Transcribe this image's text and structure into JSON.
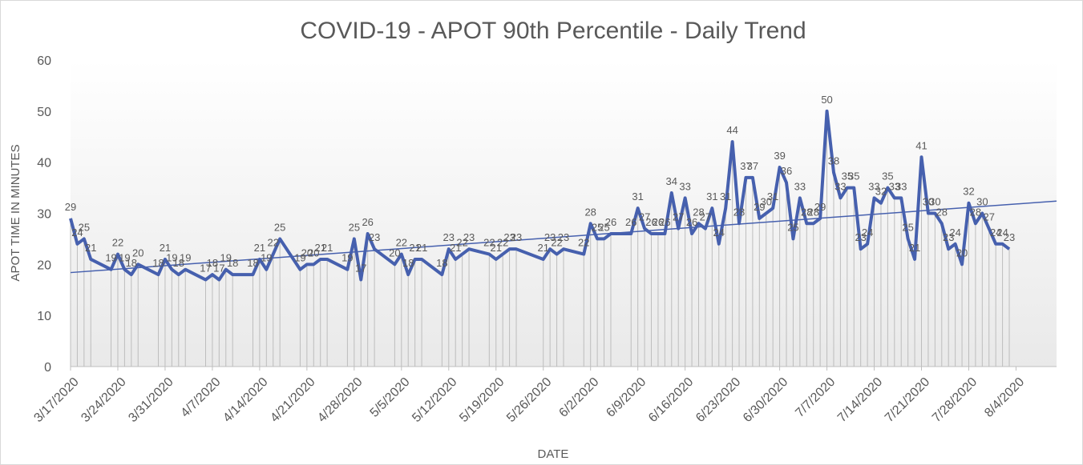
{
  "chart_data": {
    "type": "line",
    "title": "COVID-19 - APOT 90th Percentile - Daily Trend",
    "x_label": "DATE",
    "y_label": "APOT TIME IN MINUTES",
    "color": "#4660ae",
    "trendline": true,
    "drop_lines": true,
    "grid": false,
    "x": [
      "3/17/2020",
      "3/18/2020",
      "3/19/2020",
      "3/20/2020",
      "3/23/2020",
      "3/24/2020",
      "3/25/2020",
      "3/26/2020",
      "3/27/2020",
      "3/30/2020",
      "3/31/2020",
      "4/1/2020",
      "4/2/2020",
      "4/3/2020",
      "4/6/2020",
      "4/7/2020",
      "4/8/2020",
      "4/9/2020",
      "4/10/2020",
      "4/13/2020",
      "4/14/2020",
      "4/15/2020",
      "4/16/2020",
      "4/17/2020",
      "4/20/2020",
      "4/21/2020",
      "4/22/2020",
      "4/23/2020",
      "4/24/2020",
      "4/27/2020",
      "4/28/2020",
      "4/29/2020",
      "4/30/2020",
      "5/1/2020",
      "5/4/2020",
      "5/5/2020",
      "5/6/2020",
      "5/7/2020",
      "5/8/2020",
      "5/11/2020",
      "5/12/2020",
      "5/13/2020",
      "5/14/2020",
      "5/15/2020",
      "5/18/2020",
      "5/19/2020",
      "5/20/2020",
      "5/21/2020",
      "5/22/2020",
      "5/26/2020",
      "5/27/2020",
      "5/28/2020",
      "5/29/2020",
      "6/1/2020",
      "6/2/2020",
      "6/3/2020",
      "6/4/2020",
      "6/5/2020",
      "6/8/2020",
      "6/9/2020",
      "6/10/2020",
      "6/11/2020",
      "6/12/2020",
      "6/13/2020",
      "6/14/2020",
      "6/15/2020",
      "6/16/2020",
      "6/17/2020",
      "6/18/2020",
      "6/19/2020",
      "6/20/2020",
      "6/21/2020",
      "6/22/2020",
      "6/23/2020",
      "6/24/2020",
      "6/25/2020",
      "6/26/2020",
      "6/27/2020",
      "6/28/2020",
      "6/29/2020",
      "6/30/2020",
      "7/1/2020",
      "7/2/2020",
      "7/3/2020",
      "7/4/2020",
      "7/5/2020",
      "7/6/2020",
      "7/7/2020",
      "7/8/2020",
      "7/9/2020",
      "7/10/2020",
      "7/11/2020",
      "7/12/2020",
      "7/13/2020",
      "7/14/2020",
      "7/15/2020",
      "7/16/2020",
      "7/17/2020",
      "7/18/2020",
      "7/19/2020",
      "7/20/2020",
      "7/21/2020",
      "7/22/2020",
      "7/23/2020",
      "7/24/2020",
      "7/25/2020",
      "7/26/2020",
      "7/27/2020",
      "7/28/2020",
      "7/29/2020",
      "7/30/2020",
      "7/31/2020",
      "8/1/2020",
      "8/2/2020",
      "8/3/2020"
    ],
    "values": [
      29,
      24,
      25,
      21,
      19,
      22,
      19,
      18,
      20,
      18,
      21,
      19,
      18,
      19,
      17,
      18,
      17,
      19,
      18,
      18,
      21,
      19,
      22,
      25,
      19,
      20,
      20,
      21,
      21,
      19,
      25,
      17,
      26,
      23,
      20,
      22,
      18,
      21,
      21,
      18,
      23,
      21,
      22,
      23,
      22,
      21,
      22,
      23,
      23,
      21,
      23,
      22,
      23,
      22,
      28,
      25,
      25,
      26,
      26,
      31,
      27,
      26,
      26,
      26,
      34,
      27,
      33,
      26,
      28,
      27,
      31,
      24,
      31,
      44,
      28,
      37,
      37,
      29,
      30,
      31,
      39,
      36,
      25,
      33,
      28,
      28,
      29,
      50,
      38,
      33,
      35,
      35,
      23,
      24,
      33,
      32,
      35,
      33,
      33,
      25,
      21,
      41,
      30,
      30,
      28,
      23,
      24,
      20,
      32,
      28,
      30,
      27,
      24,
      24,
      23
    ],
    "xlim": [
      "3/17/2020",
      "8/10/2020"
    ],
    "xticks": [
      "3/17/2020",
      "3/24/2020",
      "3/31/2020",
      "4/7/2020",
      "4/14/2020",
      "4/21/2020",
      "4/28/2020",
      "5/5/2020",
      "5/12/2020",
      "5/19/2020",
      "5/26/2020",
      "6/2/2020",
      "6/9/2020",
      "6/16/2020",
      "6/23/2020",
      "6/30/2020",
      "7/7/2020",
      "7/14/2020",
      "7/21/2020",
      "7/28/2020",
      "8/4/2020"
    ],
    "ylim": [
      0,
      60
    ],
    "yticks": [
      0,
      10,
      20,
      30,
      40,
      50,
      60
    ]
  }
}
